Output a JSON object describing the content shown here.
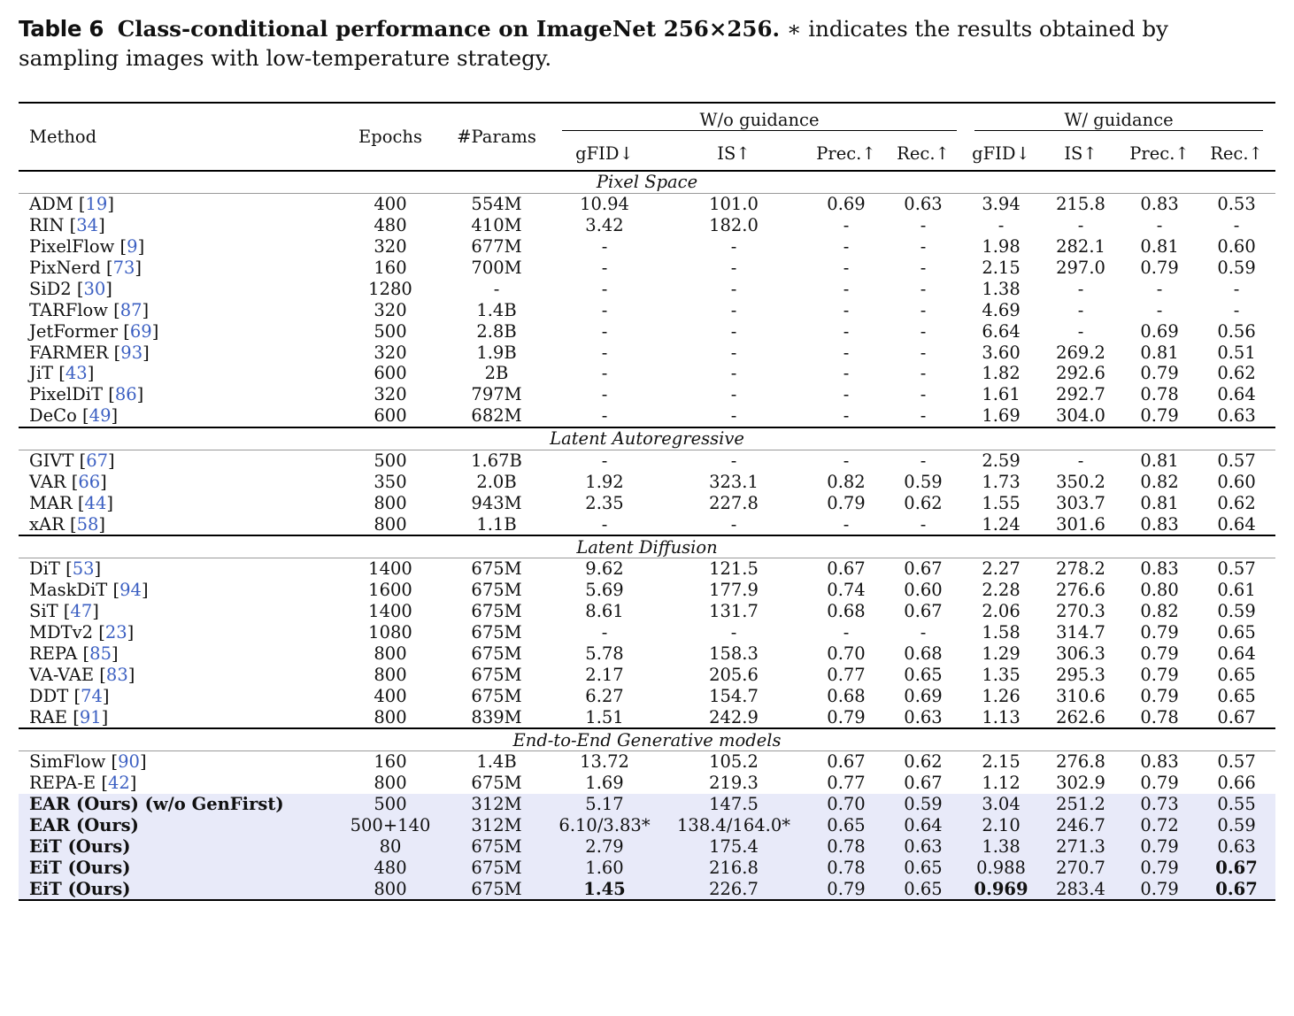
{
  "caption": {
    "label": "Table 6",
    "title": "Class-conditional performance on ImageNet 256×256.",
    "text": "∗ indicates the results obtained by sampling images with low-temperature strategy."
  },
  "headers": {
    "method": "Method",
    "epochs": "Epochs",
    "params": "#Params",
    "wo_guidance": "W/o guidance",
    "w_guidance": "W/ guidance",
    "gfid": "gFID↓",
    "is": "IS↑",
    "prec": "Prec.↑",
    "rec": "Rec.↑"
  },
  "sections": [
    {
      "title": "Pixel Space",
      "rows": [
        {
          "method": "ADM",
          "ref": "19",
          "epochs": "400",
          "params": "554M",
          "vals": [
            "10.94",
            "101.0",
            "0.69",
            "0.63",
            "3.94",
            "215.8",
            "0.83",
            "0.53"
          ],
          "bold": [
            6
          ]
        },
        {
          "method": "RIN",
          "ref": "34",
          "epochs": "480",
          "params": "410M",
          "vals": [
            "3.42",
            "182.0",
            "-",
            "-",
            "-",
            "-",
            "-",
            "-"
          ],
          "bold": []
        },
        {
          "method": "PixelFlow",
          "ref": "9",
          "epochs": "320",
          "params": "677M",
          "vals": [
            "-",
            "-",
            "-",
            "-",
            "1.98",
            "282.1",
            "0.81",
            "0.60"
          ],
          "bold": []
        },
        {
          "method": "PixNerd",
          "ref": "73",
          "epochs": "160",
          "params": "700M",
          "vals": [
            "-",
            "-",
            "-",
            "-",
            "2.15",
            "297.0",
            "0.79",
            "0.59"
          ],
          "bold": []
        },
        {
          "method": "SiD2",
          "ref": "30",
          "epochs": "1280",
          "params": "-",
          "vals": [
            "-",
            "-",
            "-",
            "-",
            "1.38",
            "-",
            "-",
            "-"
          ],
          "bold": []
        },
        {
          "method": "TARFlow",
          "ref": "87",
          "epochs": "320",
          "params": "1.4B",
          "vals": [
            "-",
            "-",
            "-",
            "-",
            "4.69",
            "-",
            "-",
            "-"
          ],
          "bold": []
        },
        {
          "method": "JetFormer",
          "ref": "69",
          "epochs": "500",
          "params": "2.8B",
          "vals": [
            "-",
            "-",
            "-",
            "-",
            "6.64",
            "-",
            "0.69",
            "0.56"
          ],
          "bold": []
        },
        {
          "method": "FARMER",
          "ref": "93",
          "epochs": "320",
          "params": "1.9B",
          "vals": [
            "-",
            "-",
            "-",
            "-",
            "3.60",
            "269.2",
            "0.81",
            "0.51"
          ],
          "bold": []
        },
        {
          "method": "JiT",
          "ref": "43",
          "epochs": "600",
          "params": "2B",
          "vals": [
            "-",
            "-",
            "-",
            "-",
            "1.82",
            "292.6",
            "0.79",
            "0.62"
          ],
          "bold": []
        },
        {
          "method": "PixelDiT",
          "ref": "86",
          "epochs": "320",
          "params": "797M",
          "vals": [
            "-",
            "-",
            "-",
            "-",
            "1.61",
            "292.7",
            "0.78",
            "0.64"
          ],
          "bold": []
        },
        {
          "method": "DeCo",
          "ref": "49",
          "epochs": "600",
          "params": "682M",
          "vals": [
            "-",
            "-",
            "-",
            "-",
            "1.69",
            "304.0",
            "0.79",
            "0.63"
          ],
          "bold": []
        }
      ]
    },
    {
      "title": "Latent Autoregressive",
      "rows": [
        {
          "method": "GIVT",
          "ref": "67",
          "epochs": "500",
          "params": "1.67B",
          "vals": [
            "-",
            "-",
            "-",
            "-",
            "2.59",
            "-",
            "0.81",
            "0.57"
          ],
          "bold": []
        },
        {
          "method": "VAR",
          "ref": "66",
          "epochs": "350",
          "params": "2.0B",
          "vals": [
            "1.92",
            "323.1",
            "0.82",
            "0.59",
            "1.73",
            "350.2",
            "0.82",
            "0.60"
          ],
          "bold": [
            1,
            2,
            5
          ]
        },
        {
          "method": "MAR",
          "ref": "44",
          "epochs": "800",
          "params": "943M",
          "vals": [
            "2.35",
            "227.8",
            "0.79",
            "0.62",
            "1.55",
            "303.7",
            "0.81",
            "0.62"
          ],
          "bold": []
        },
        {
          "method": "xAR",
          "ref": "58",
          "epochs": "800",
          "params": "1.1B",
          "vals": [
            "-",
            "-",
            "-",
            "-",
            "1.24",
            "301.6",
            "0.83",
            "0.64"
          ],
          "bold": [
            6
          ]
        }
      ]
    },
    {
      "title": "Latent Diffusion",
      "rows": [
        {
          "method": "DiT",
          "ref": "53",
          "epochs": "1400",
          "params": "675M",
          "vals": [
            "9.62",
            "121.5",
            "0.67",
            "0.67",
            "2.27",
            "278.2",
            "0.83",
            "0.57"
          ],
          "bold": [
            6
          ]
        },
        {
          "method": "MaskDiT",
          "ref": "94",
          "epochs": "1600",
          "params": "675M",
          "vals": [
            "5.69",
            "177.9",
            "0.74",
            "0.60",
            "2.28",
            "276.6",
            "0.80",
            "0.61"
          ],
          "bold": []
        },
        {
          "method": "SiT",
          "ref": "47",
          "epochs": "1400",
          "params": "675M",
          "vals": [
            "8.61",
            "131.7",
            "0.68",
            "0.67",
            "2.06",
            "270.3",
            "0.82",
            "0.59"
          ],
          "bold": []
        },
        {
          "method": "MDTv2",
          "ref": "23",
          "epochs": "1080",
          "params": "675M",
          "vals": [
            "-",
            "-",
            "-",
            "-",
            "1.58",
            "314.7",
            "0.79",
            "0.65"
          ],
          "bold": []
        },
        {
          "method": "REPA",
          "ref": "85",
          "epochs": "800",
          "params": "675M",
          "vals": [
            "5.78",
            "158.3",
            "0.70",
            "0.68",
            "1.29",
            "306.3",
            "0.79",
            "0.64"
          ],
          "bold": []
        },
        {
          "method": "VA-VAE",
          "ref": "83",
          "epochs": "800",
          "params": "675M",
          "vals": [
            "2.17",
            "205.6",
            "0.77",
            "0.65",
            "1.35",
            "295.3",
            "0.79",
            "0.65"
          ],
          "bold": []
        },
        {
          "method": "DDT",
          "ref": "74",
          "epochs": "400",
          "params": "675M",
          "vals": [
            "6.27",
            "154.7",
            "0.68",
            "0.69",
            "1.26",
            "310.6",
            "0.79",
            "0.65"
          ],
          "bold": [
            3
          ]
        },
        {
          "method": "RAE",
          "ref": "91",
          "epochs": "800",
          "params": "839M",
          "vals": [
            "1.51",
            "242.9",
            "0.79",
            "0.63",
            "1.13",
            "262.6",
            "0.78",
            "0.67"
          ],
          "bold": [
            7
          ]
        }
      ]
    },
    {
      "title": "End-to-End Generative models",
      "rows": [
        {
          "method": "SimFlow",
          "ref": "90",
          "epochs": "160",
          "params": "1.4B",
          "vals": [
            "13.72",
            "105.2",
            "0.67",
            "0.62",
            "2.15",
            "276.8",
            "0.83",
            "0.57"
          ],
          "bold": []
        },
        {
          "method": "REPA-E",
          "ref": "42",
          "epochs": "800",
          "params": "675M",
          "vals": [
            "1.69",
            "219.3",
            "0.77",
            "0.67",
            "1.12",
            "302.9",
            "0.79",
            "0.66"
          ],
          "bold": []
        },
        {
          "method": "EAR (Ours) (w/o GenFirst)",
          "ref": "",
          "epochs": "500",
          "params": "312M",
          "vals": [
            "5.17",
            "147.5",
            "0.70",
            "0.59",
            "3.04",
            "251.2",
            "0.73",
            "0.55"
          ],
          "bold": [],
          "ours": true
        },
        {
          "method": "EAR (Ours)",
          "ref": "",
          "epochs": "500+140",
          "params": "312M",
          "vals": [
            "6.10/3.83*",
            "138.4/164.0*",
            "0.65",
            "0.64",
            "2.10",
            "246.7",
            "0.72",
            "0.59"
          ],
          "bold": [],
          "ours": true
        },
        {
          "method": "EiT (Ours)",
          "ref": "",
          "epochs": "80",
          "params": "675M",
          "vals": [
            "2.79",
            "175.4",
            "0.78",
            "0.63",
            "1.38",
            "271.3",
            "0.79",
            "0.63"
          ],
          "bold": [],
          "ours": true
        },
        {
          "method": "EiT (Ours)",
          "ref": "",
          "epochs": "480",
          "params": "675M",
          "vals": [
            "1.60",
            "216.8",
            "0.78",
            "0.65",
            "0.988",
            "270.7",
            "0.79",
            "0.67"
          ],
          "bold": [
            7
          ],
          "ours": true
        },
        {
          "method": "EiT (Ours)",
          "ref": "",
          "epochs": "800",
          "params": "675M",
          "vals": [
            "1.45",
            "226.7",
            "0.79",
            "0.65",
            "0.969",
            "283.4",
            "0.79",
            "0.67"
          ],
          "bold": [
            0,
            4,
            7
          ],
          "ours": true
        }
      ]
    }
  ]
}
